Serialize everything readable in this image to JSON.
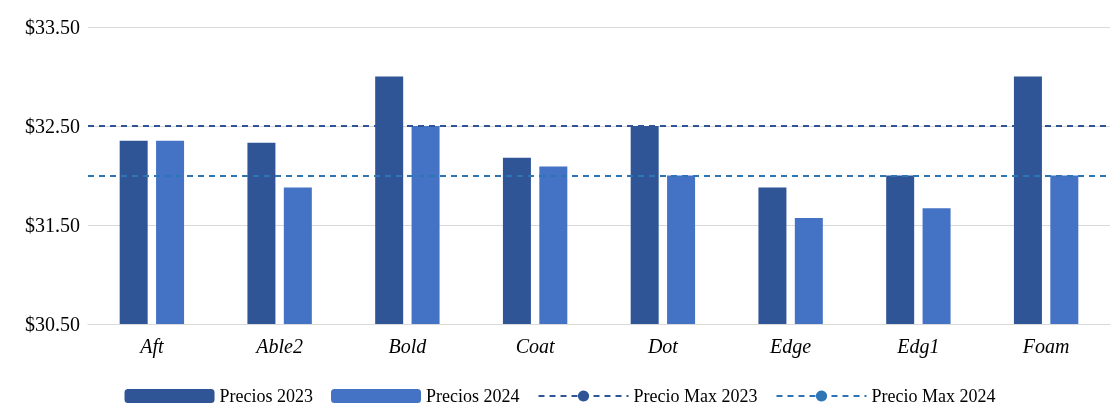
{
  "chart_data": {
    "type": "bar",
    "categories": [
      "Aft",
      "Able2",
      "Bold",
      "Coat",
      "Dot",
      "Edge",
      "Edg1",
      "Foam"
    ],
    "series": [
      {
        "name": "Precios 2023",
        "color": "#2f5597",
        "values": [
          32.35,
          32.33,
          33.0,
          32.18,
          32.5,
          31.88,
          32.0,
          33.0
        ]
      },
      {
        "name": "Precios 2024",
        "color": "#4472c4",
        "values": [
          32.35,
          31.88,
          32.5,
          32.09,
          32.0,
          31.57,
          31.67,
          32.0
        ]
      }
    ],
    "ylim": [
      30.5,
      33.5
    ],
    "yticks": [
      {
        "value": 30.5,
        "label": "$30.50"
      },
      {
        "value": 31.5,
        "label": "$31.50"
      },
      {
        "value": 32.5,
        "label": "$32.50"
      },
      {
        "value": 33.5,
        "label": "$33.50"
      }
    ],
    "ref_lines": [
      {
        "axis": "y",
        "value": 32.5,
        "label": "Precio Max 2023",
        "color": "#2f5597",
        "line_style": "dashed"
      },
      {
        "axis": "y",
        "value": 32.0,
        "label": "Precio Max 2024",
        "color": "#2e75b6",
        "line_style": "dashed"
      }
    ],
    "grid": "y",
    "legend": "bottom"
  }
}
